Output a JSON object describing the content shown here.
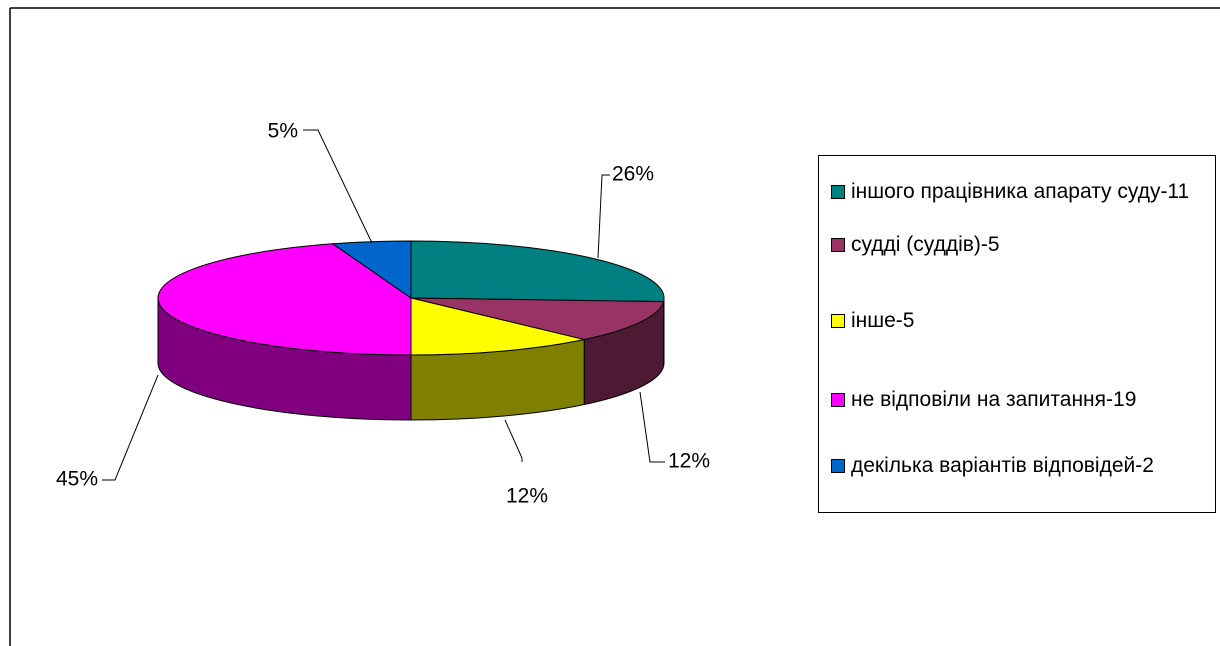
{
  "chart_data": {
    "type": "pie",
    "categories": [
      "іншого працівника апарату суду-11",
      "судді (суддів)-5",
      "інше-5",
      "не відповіли на запитання-19",
      "декілька варіантів відповідей-2"
    ],
    "values": [
      26,
      12,
      12,
      45,
      5
    ],
    "value_labels": [
      "26%",
      "12%",
      "12%",
      "45%",
      "5%"
    ],
    "colors": [
      "#008080",
      "#993366",
      "#ffff00",
      "#ff00ff",
      "#0066cc"
    ],
    "legend": "right"
  }
}
